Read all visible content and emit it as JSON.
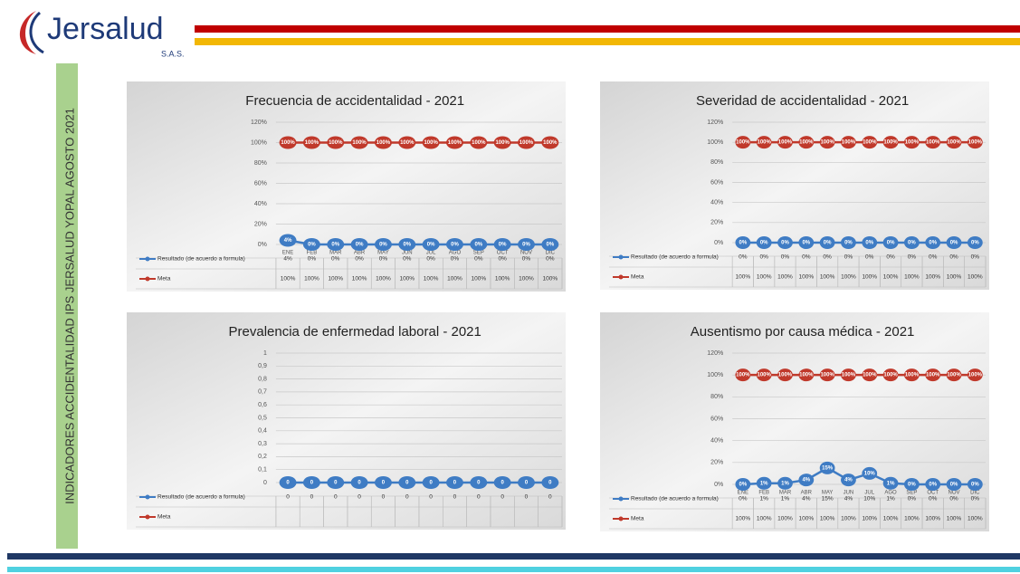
{
  "header": {
    "logo": "Jersalud",
    "logo_sub": "S.A.S."
  },
  "sidebar": "INDICADORES ACCIDENTALIDAD IPS JERSALUD YOPAL AGOSTO 2021",
  "chart_data": [
    {
      "type": "line",
      "title": "Frecuencia de accidentalidad -  2021",
      "categories": [
        "ENE",
        "FEB",
        "MAR",
        "ABR",
        "MAY",
        "JUN",
        "JUL",
        "AGO",
        "SEP",
        "OCT",
        "NOV",
        "DIC"
      ],
      "ylim": [
        0,
        120
      ],
      "yticks": [
        {
          "value": 0,
          "label": "0%"
        },
        {
          "value": 20,
          "label": "20%"
        },
        {
          "value": 40,
          "label": "40%"
        },
        {
          "value": 60,
          "label": "60%"
        },
        {
          "value": 80,
          "label": "80%"
        },
        {
          "value": 100,
          "label": "100%"
        },
        {
          "value": 120,
          "label": "120%"
        }
      ],
      "grid": true,
      "series": [
        {
          "name": "Resultado (de acuerdo a formula)",
          "color": "#3f7cc4",
          "values": [
            4,
            0,
            0,
            0,
            0,
            0,
            0,
            0,
            0,
            0,
            0,
            0
          ],
          "value_labels": [
            "4%",
            "0%",
            "0%",
            "0%",
            "0%",
            "0%",
            "0%",
            "0%",
            "0%",
            "0%",
            "0%",
            "0%"
          ]
        },
        {
          "name": "Meta",
          "color": "#c0392b",
          "values": [
            100,
            100,
            100,
            100,
            100,
            100,
            100,
            100,
            100,
            100,
            100,
            100
          ],
          "value_labels": [
            "100%",
            "100%",
            "100%",
            "100%",
            "100%",
            "100%",
            "100%",
            "100%",
            "100%",
            "100%",
            "100%",
            "100%"
          ]
        }
      ]
    },
    {
      "type": "line",
      "title": "Severidad de accidentalidad -  2021",
      "categories": [
        null,
        null,
        null,
        null,
        null,
        null,
        null,
        null,
        null,
        null,
        null,
        null
      ],
      "ylim": [
        0,
        120
      ],
      "yticks": [
        {
          "value": 0,
          "label": "0%"
        },
        {
          "value": 20,
          "label": "20%"
        },
        {
          "value": 40,
          "label": "40%"
        },
        {
          "value": 60,
          "label": "60%"
        },
        {
          "value": 80,
          "label": "80%"
        },
        {
          "value": 100,
          "label": "100%"
        },
        {
          "value": 120,
          "label": "120%"
        }
      ],
      "grid": true,
      "series": [
        {
          "name": "Resultado (de acuerdo a formula)",
          "color": "#3f7cc4",
          "values": [
            0,
            0,
            0,
            0,
            0,
            0,
            0,
            0,
            0,
            0,
            0,
            0
          ],
          "value_labels": [
            "0%",
            "0%",
            "0%",
            "0%",
            "0%",
            "0%",
            "0%",
            "0%",
            "0%",
            "0%",
            "0%",
            "0%"
          ]
        },
        {
          "name": "Meta",
          "color": "#c0392b",
          "values": [
            100,
            100,
            100,
            100,
            100,
            100,
            100,
            100,
            100,
            100,
            100,
            100
          ],
          "value_labels": [
            "100%",
            "100%",
            "100%",
            "100%",
            "100%",
            "100%",
            "100%",
            "100%",
            "100%",
            "100%",
            "100%",
            "100%"
          ]
        }
      ]
    },
    {
      "type": "line",
      "title": "Prevalencia de enfermedad laboral   - 2021",
      "categories": [
        null,
        null,
        null,
        null,
        null,
        null,
        null,
        null,
        null,
        null,
        null,
        null
      ],
      "ylim": [
        0,
        1
      ],
      "yticks": [
        0,
        {
          "value": 0.1,
          "label": "0,1"
        },
        {
          "value": 0.2,
          "label": "0,2"
        },
        {
          "value": 0.3,
          "label": "0,3"
        },
        {
          "value": 0.4,
          "label": "0,4"
        },
        {
          "value": 0.5,
          "label": "0,5"
        },
        {
          "value": 0.6,
          "label": "0,6"
        },
        {
          "value": 0.7,
          "label": "0,7"
        },
        {
          "value": 0.8,
          "label": "0,8"
        },
        {
          "value": 0.9,
          "label": "0,9"
        },
        1
      ],
      "grid": true,
      "series": [
        {
          "name": "Resultado (de acuerdo a formula)",
          "color": "#3f7cc4",
          "values": [
            0,
            0,
            0,
            0,
            0,
            0,
            0,
            0,
            0,
            0,
            0,
            0
          ]
        },
        {
          "name": "Meta",
          "color": "#c0392b",
          "values": [
            null,
            null,
            null,
            null,
            null,
            null,
            null,
            null,
            null,
            null,
            null,
            null
          ]
        }
      ]
    },
    {
      "type": "line",
      "title": "Ausentismo por causa médica -  2021",
      "categories": [
        "ENE",
        "FEB",
        "MAR",
        "ABR",
        "MAY",
        "JUN",
        "JUL",
        "AGO",
        "SEP",
        "OCT",
        "NOV",
        "DIC"
      ],
      "ylim": [
        0,
        120
      ],
      "yticks": [
        {
          "value": 0,
          "label": "0%"
        },
        {
          "value": 20,
          "label": "20%"
        },
        {
          "value": 40,
          "label": "40%"
        },
        {
          "value": 60,
          "label": "60%"
        },
        {
          "value": 80,
          "label": "80%"
        },
        {
          "value": 100,
          "label": "100%"
        },
        {
          "value": 120,
          "label": "120%"
        }
      ],
      "grid": true,
      "series": [
        {
          "name": "Resultado (de acuerdo a formula)",
          "color": "#3f7cc4",
          "values": [
            0,
            1,
            1,
            4,
            15,
            4,
            10,
            1,
            0,
            0,
            0,
            0
          ],
          "value_labels": [
            "0%",
            "1%",
            "1%",
            "4%",
            "15%",
            "4%",
            "10%",
            "1%",
            "0%",
            "0%",
            "0%",
            "0%"
          ]
        },
        {
          "name": "Meta",
          "color": "#c0392b",
          "values": [
            100,
            100,
            100,
            100,
            100,
            100,
            100,
            100,
            100,
            100,
            100,
            100
          ],
          "value_labels": [
            "100%",
            "100%",
            "100%",
            "100%",
            "100%",
            "100%",
            "100%",
            "100%",
            "100%",
            "100%",
            "100%",
            "100%"
          ]
        }
      ]
    }
  ]
}
